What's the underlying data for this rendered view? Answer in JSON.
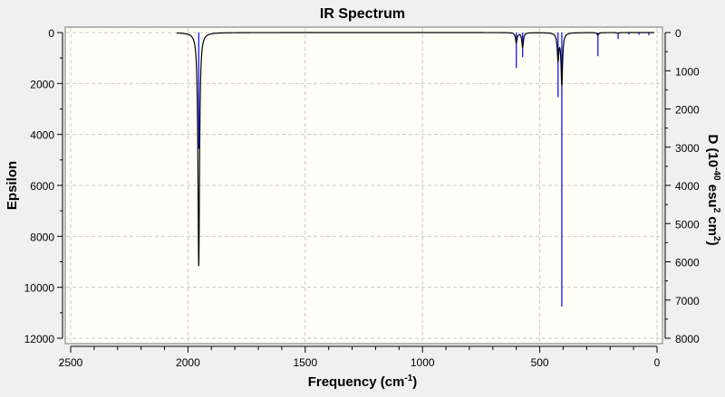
{
  "chart_data": {
    "type": "line",
    "title": "IR Spectrum",
    "xlabel": "Frequency (cm",
    "xlabel_sup": "-1",
    "xlabel_end": ")",
    "ylabel": "Epsilon",
    "y2label": "D (10",
    "y2label_sup1": "-40",
    "y2label_mid": " esu",
    "y2label_sup2": "2",
    "y2label_mid2": " cm",
    "y2label_sup3": "2",
    "y2label_end": ")",
    "xlim": [
      2500,
      0
    ],
    "ylim": [
      0,
      12000
    ],
    "y2lim": [
      0,
      8000
    ],
    "x_ticks": [
      2500,
      2000,
      1500,
      1000,
      500,
      0
    ],
    "y_ticks": [
      0,
      2000,
      4000,
      6000,
      8000,
      10000,
      12000
    ],
    "y2_ticks": [
      0,
      1000,
      2000,
      3000,
      4000,
      5000,
      6000,
      7000,
      8000
    ],
    "grid": true,
    "y_inverted": true,
    "curve_color": "#000000",
    "stick_color": "#0000ff",
    "curve_peaks": [
      {
        "freq": 1954,
        "epsilon": 9200
      },
      {
        "freq": 600,
        "epsilon": 400
      },
      {
        "freq": 573,
        "epsilon": 570
      },
      {
        "freq": 422,
        "epsilon": 1030
      },
      {
        "freq": 406,
        "epsilon": 2030
      },
      {
        "freq": 252,
        "epsilon": 100
      },
      {
        "freq": 166,
        "epsilon": 30
      }
    ],
    "sticks": [
      {
        "freq": 1954,
        "D": 3040
      },
      {
        "freq": 600,
        "D": 930
      },
      {
        "freq": 573,
        "D": 640
      },
      {
        "freq": 422,
        "D": 1690
      },
      {
        "freq": 406,
        "D": 7170
      },
      {
        "freq": 252,
        "D": 620
      },
      {
        "freq": 166,
        "D": 170
      },
      {
        "freq": 120,
        "D": 50
      },
      {
        "freq": 77,
        "D": 60
      },
      {
        "freq": 35,
        "D": 70
      }
    ]
  }
}
